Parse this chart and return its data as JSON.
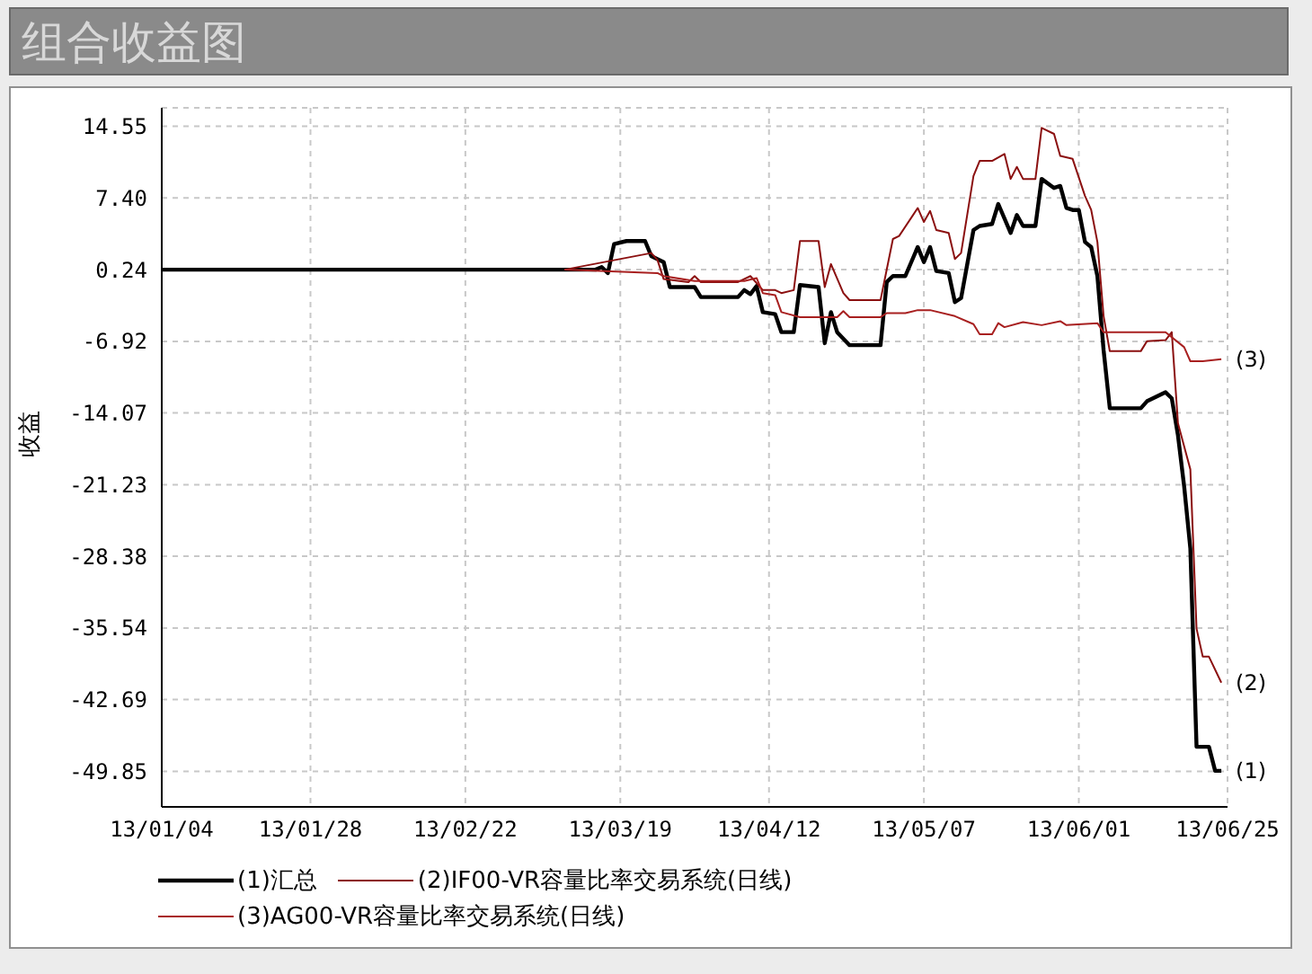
{
  "chart_data": {
    "type": "line",
    "title": "组合收益图",
    "ylabel": "收益",
    "xlim": [
      "--01-04",
      "--06-25"
    ],
    "xticks": [
      {
        "value": "--01-04",
        "label": "13/01/04"
      },
      {
        "value": "--01-28",
        "label": "13/01/28"
      },
      {
        "value": "--02-22",
        "label": "13/02/22"
      },
      {
        "value": "--03-19",
        "label": "13/03/19"
      },
      {
        "value": "--04-12",
        "label": "13/04/12"
      },
      {
        "value": "--05-07",
        "label": "13/05/07"
      },
      {
        "value": "--06-01",
        "label": "13/06/01"
      },
      {
        "value": "--06-25",
        "label": "13/06/25"
      }
    ],
    "ylim": [
      -53.4,
      16.4
    ],
    "yticks": [
      14.55,
      {
        "value": 7.4,
        "label": "7.40"
      },
      0.24,
      -6.92,
      -14.07,
      -21.23,
      -28.38,
      -35.54,
      -42.69,
      -49.85
    ],
    "grid": true,
    "legend": "bottom",
    "marker": "none",
    "line_style": "solid",
    "series": [
      {
        "name": "(1)汇总",
        "color": "#000000",
        "x": [
          "--01-04",
          "--03-15",
          "--03-16",
          "--03-17",
          "--03-18",
          "--03-20",
          "--03-23",
          "--03-24",
          "--03-26",
          "--03-27",
          "--03-31",
          "--04-01",
          "--04-07",
          "--04-08",
          "--04-09",
          "--04-10",
          "--04-11",
          "--04-13",
          "--04-14",
          "--04-16",
          "--04-17",
          "--04-20",
          "--04-21",
          "--04-22",
          "--04-23",
          "--04-25",
          "--04-30",
          "--05-01",
          "--05-02",
          "--05-04",
          "--05-06",
          "--05-07",
          "--05-08",
          "--05-09",
          "--05-11",
          "--05-12",
          "--05-13",
          "--05-15",
          "--05-16",
          "--05-18",
          "--05-19",
          "--05-21",
          "--05-22",
          "--05-23",
          "--05-25",
          "--05-26",
          "--05-28",
          "--05-29",
          "--05-30",
          "--05-31",
          "--06-01",
          "--06-02",
          "--06-03",
          "--06-04",
          "--06-05",
          "--06-06",
          "--06-11",
          "--06-12",
          "--06-15",
          "--06-16",
          "--06-17",
          "--06-18",
          "--06-19",
          "--06-20",
          "--06-22",
          "--06-23",
          "--06-24"
        ],
        "values": [
          0.24,
          0.24,
          0.5,
          -0.1,
          2.8,
          3.1,
          3.1,
          1.6,
          1.0,
          -1.5,
          -1.5,
          -2.5,
          -2.5,
          -1.8,
          -2.2,
          -1.4,
          -4.0,
          -4.2,
          -6.0,
          -6.0,
          -1.3,
          -1.5,
          -7.1,
          -4.0,
          -6.0,
          -7.3,
          -7.3,
          -1.0,
          -0.4,
          -0.4,
          2.5,
          1.0,
          2.5,
          0.1,
          -0.1,
          -3.0,
          -2.6,
          4.2,
          4.6,
          4.8,
          6.8,
          3.9,
          5.7,
          4.6,
          4.6,
          9.3,
          8.4,
          8.6,
          6.4,
          6.2,
          6.2,
          3.0,
          2.5,
          -0.4,
          -7.8,
          -13.6,
          -13.6,
          -12.9,
          -12.0,
          -12.6,
          -16.3,
          -21.4,
          -27.6,
          -47.4,
          -47.4,
          -49.8,
          -49.8
        ]
      },
      {
        "name": "(2)IF00-VR容量比率交易系统(日线)",
        "color": "#8b1010",
        "x": [
          "--03-10",
          "--03-24",
          "--03-25",
          "--03-26",
          "--03-30",
          "--03-31",
          "--04-01",
          "--04-07",
          "--04-09",
          "--04-11",
          "--04-13",
          "--04-14",
          "--04-16",
          "--04-17",
          "--04-20",
          "--04-21",
          "--04-22",
          "--04-24",
          "--04-25",
          "--04-30",
          "--05-02",
          "--05-03",
          "--05-06",
          "--05-07",
          "--05-08",
          "--05-09",
          "--05-11",
          "--05-12",
          "--05-13",
          "--05-15",
          "--05-16",
          "--05-18",
          "--05-20",
          "--05-21",
          "--05-22",
          "--05-23",
          "--05-25",
          "--05-26",
          "--05-28",
          "--05-29",
          "--05-31",
          "--06-02",
          "--06-03",
          "--06-04",
          "--06-05",
          "--06-06",
          "--06-11",
          "--06-12",
          "--06-15",
          "--06-16",
          "--06-17",
          "--06-18",
          "--06-19",
          "--06-20",
          "--06-21",
          "--06-22",
          "--06-24"
        ],
        "values": [
          0.24,
          1.9,
          1.2,
          -0.7,
          -1.0,
          -0.4,
          -1.0,
          -1.0,
          -0.4,
          -1.8,
          -1.8,
          -2.1,
          -1.8,
          3.1,
          3.1,
          -1.5,
          0.8,
          -2.1,
          -2.8,
          -2.8,
          3.3,
          3.6,
          6.4,
          5.0,
          6.1,
          4.2,
          3.9,
          1.3,
          1.9,
          9.6,
          11.1,
          11.1,
          11.8,
          9.3,
          10.5,
          9.3,
          9.3,
          14.4,
          13.8,
          11.6,
          11.3,
          7.6,
          6.2,
          3.0,
          -4.4,
          -7.9,
          -7.9,
          -6.9,
          -6.8,
          -6.0,
          -15.1,
          -17.4,
          -19.7,
          -35.6,
          -38.4,
          -38.4,
          -41.0
        ]
      },
      {
        "name": "(3)AG00-VR容量比率交易系统(日线)",
        "color": "#a82020",
        "x": [
          "--03-10",
          "--03-25",
          "--03-26",
          "--03-31",
          "--04-08",
          "--04-10",
          "--04-11",
          "--04-13",
          "--04-14",
          "--04-17",
          "--04-23",
          "--04-24",
          "--04-25",
          "--04-30",
          "--05-01",
          "--05-04",
          "--05-06",
          "--05-08",
          "--05-12",
          "--05-15",
          "--05-16",
          "--05-18",
          "--05-19",
          "--05-20",
          "--05-23",
          "--05-26",
          "--05-29",
          "--05-30",
          "--06-04",
          "--06-05",
          "--06-15",
          "--06-18",
          "--06-19",
          "--06-21",
          "--06-24"
        ],
        "values": [
          0.24,
          -0.1,
          -0.4,
          -0.9,
          -0.9,
          -0.6,
          -2.1,
          -2.3,
          -4.0,
          -4.5,
          -4.5,
          -3.9,
          -4.5,
          -4.5,
          -4.1,
          -4.1,
          -3.8,
          -3.8,
          -4.4,
          -5.2,
          -6.2,
          -6.2,
          -5.1,
          -5.5,
          -5.0,
          -5.3,
          -4.9,
          -5.3,
          -5.1,
          -6.0,
          -6.0,
          -7.5,
          -8.9,
          -8.9,
          -8.7
        ]
      }
    ],
    "annotations": [
      {
        "text": "(1)",
        "x": "--06-24",
        "y": -49.8
      },
      {
        "text": "(2)",
        "x": "--06-24",
        "y": -41.0
      },
      {
        "text": "(3)",
        "x": "--06-24",
        "y": -8.7
      }
    ]
  }
}
